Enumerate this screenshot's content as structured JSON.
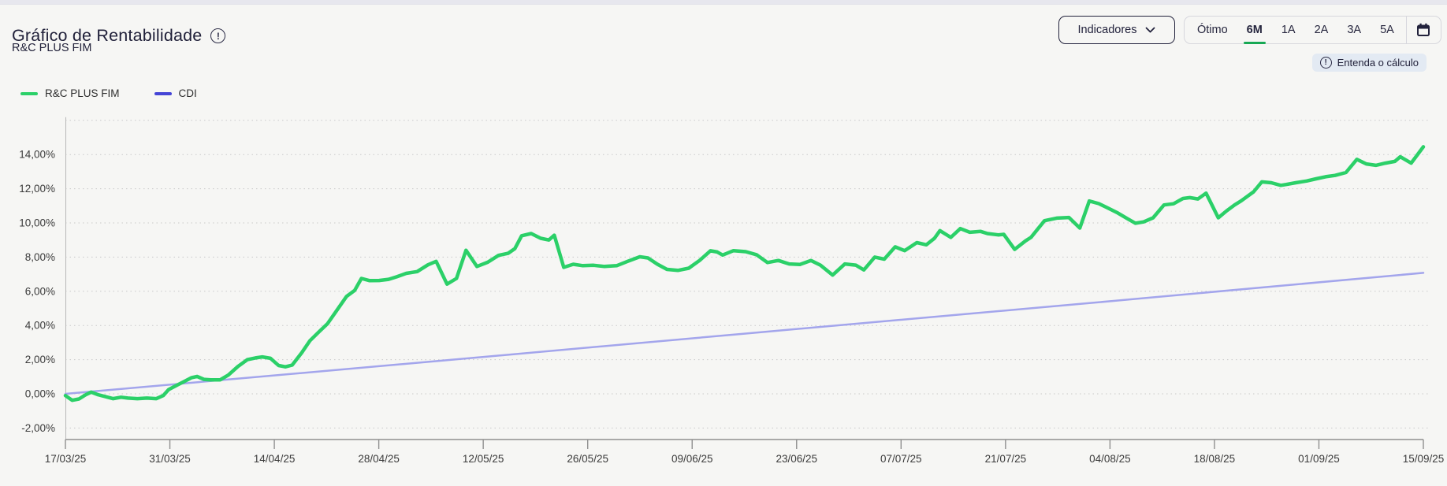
{
  "header": {
    "title": "Gráfico de Rentabilidade",
    "subtitle": "R&C PLUS FIM",
    "indicators_button_label": "Indicadores",
    "chevron_icon": "chevron-down-icon",
    "title_info_icon": "info-icon",
    "info_glyph": "!",
    "periods": [
      "Ótimo",
      "6M",
      "1A",
      "2A",
      "3A",
      "5A"
    ],
    "selected_period": "6M",
    "calendar_icon": "calendar-icon",
    "explain_chip_label": "Entenda o cálculo"
  },
  "colors": {
    "fund_line": "#2bd068",
    "cdi_line": "#a3a5ec",
    "cdi_legend_swatch": "#4545d6",
    "selected_period_underline": "#17a854",
    "gridline": "#c9c9c9",
    "axis_left": "#b8b8b8",
    "axis_bottom": "#8f8f8f",
    "axis_text": "#3b3b3b",
    "navy_text": "#22223c",
    "chip_background": "#e3eaf3",
    "page_background": "#f6f6f4"
  },
  "legend": [
    {
      "label": "R&C PLUS FIM",
      "swatch_color": "#2bd068"
    },
    {
      "label": "CDI",
      "swatch_color": "#4545d6"
    }
  ],
  "chart_data": {
    "type": "line",
    "title": "Gráfico de Rentabilidade",
    "xlabel": "",
    "ylabel": "",
    "grid": "horizontal-dotted",
    "legend_position": "top-left-above-plot",
    "ylim": [
      -2.67,
      16
    ],
    "y_ticks": [
      -2,
      0,
      2,
      4,
      6,
      8,
      10,
      12,
      14
    ],
    "y_tick_labels": [
      "-2,00%",
      "0,00%",
      "2,00%",
      "4,00%",
      "6,00%",
      "8,00%",
      "10,00%",
      "12,00%",
      "14,00%"
    ],
    "extra_top_gridline": 16,
    "x_tick_labels": [
      "17/03/25",
      "31/03/25",
      "14/04/25",
      "28/04/25",
      "12/05/25",
      "26/05/25",
      "09/06/25",
      "23/06/25",
      "07/07/25",
      "21/07/25",
      "04/08/25",
      "18/08/25",
      "01/09/25",
      "15/09/25"
    ],
    "series": [
      {
        "name": "R&C PLUS FIM",
        "color": "#2bd068",
        "width": 4.5,
        "points": [
          [
            0,
            -0.1
          ],
          [
            0.005,
            -0.38
          ],
          [
            0.01,
            -0.3
          ],
          [
            0.015,
            -0.05
          ],
          [
            0.019,
            0.1
          ],
          [
            0.024,
            -0.05
          ],
          [
            0.029,
            -0.15
          ],
          [
            0.035,
            -0.28
          ],
          [
            0.041,
            -0.2
          ],
          [
            0.046,
            -0.25
          ],
          [
            0.053,
            -0.28
          ],
          [
            0.06,
            -0.25
          ],
          [
            0.067,
            -0.28
          ],
          [
            0.072,
            -0.1
          ],
          [
            0.076,
            0.25
          ],
          [
            0.082,
            0.5
          ],
          [
            0.087,
            0.7
          ],
          [
            0.093,
            0.95
          ],
          [
            0.097,
            1.02
          ],
          [
            0.102,
            0.85
          ],
          [
            0.107,
            0.82
          ],
          [
            0.114,
            0.82
          ],
          [
            0.12,
            1.1
          ],
          [
            0.127,
            1.6
          ],
          [
            0.134,
            2.0
          ],
          [
            0.14,
            2.1
          ],
          [
            0.145,
            2.16
          ],
          [
            0.151,
            2.08
          ],
          [
            0.157,
            1.66
          ],
          [
            0.162,
            1.58
          ],
          [
            0.167,
            1.68
          ],
          [
            0.174,
            2.4
          ],
          [
            0.18,
            3.1
          ],
          [
            0.187,
            3.65
          ],
          [
            0.193,
            4.1
          ],
          [
            0.2,
            4.9
          ],
          [
            0.207,
            5.7
          ],
          [
            0.213,
            6.05
          ],
          [
            0.218,
            6.75
          ],
          [
            0.224,
            6.62
          ],
          [
            0.231,
            6.63
          ],
          [
            0.238,
            6.7
          ],
          [
            0.244,
            6.85
          ],
          [
            0.251,
            7.05
          ],
          [
            0.259,
            7.15
          ],
          [
            0.267,
            7.55
          ],
          [
            0.273,
            7.75
          ],
          [
            0.281,
            6.42
          ],
          [
            0.288,
            6.75
          ],
          [
            0.295,
            8.4
          ],
          [
            0.303,
            7.45
          ],
          [
            0.311,
            7.7
          ],
          [
            0.319,
            8.1
          ],
          [
            0.326,
            8.22
          ],
          [
            0.331,
            8.5
          ],
          [
            0.336,
            9.25
          ],
          [
            0.343,
            9.38
          ],
          [
            0.35,
            9.1
          ],
          [
            0.356,
            9.0
          ],
          [
            0.36,
            9.28
          ],
          [
            0.367,
            7.4
          ],
          [
            0.374,
            7.58
          ],
          [
            0.381,
            7.5
          ],
          [
            0.389,
            7.52
          ],
          [
            0.397,
            7.45
          ],
          [
            0.406,
            7.5
          ],
          [
            0.414,
            7.75
          ],
          [
            0.423,
            8.02
          ],
          [
            0.429,
            7.95
          ],
          [
            0.436,
            7.58
          ],
          [
            0.443,
            7.28
          ],
          [
            0.451,
            7.22
          ],
          [
            0.459,
            7.35
          ],
          [
            0.467,
            7.8
          ],
          [
            0.475,
            8.37
          ],
          [
            0.48,
            8.3
          ],
          [
            0.484,
            8.12
          ],
          [
            0.492,
            8.38
          ],
          [
            0.501,
            8.32
          ],
          [
            0.509,
            8.14
          ],
          [
            0.517,
            7.68
          ],
          [
            0.525,
            7.8
          ],
          [
            0.533,
            7.6
          ],
          [
            0.541,
            7.57
          ],
          [
            0.549,
            7.8
          ],
          [
            0.556,
            7.53
          ],
          [
            0.565,
            6.95
          ],
          [
            0.574,
            7.6
          ],
          [
            0.582,
            7.53
          ],
          [
            0.588,
            7.25
          ],
          [
            0.596,
            8.0
          ],
          [
            0.603,
            7.88
          ],
          [
            0.611,
            8.6
          ],
          [
            0.618,
            8.38
          ],
          [
            0.627,
            8.85
          ],
          [
            0.634,
            8.72
          ],
          [
            0.64,
            9.1
          ],
          [
            0.644,
            9.55
          ],
          [
            0.652,
            9.15
          ],
          [
            0.659,
            9.67
          ],
          [
            0.666,
            9.45
          ],
          [
            0.674,
            9.5
          ],
          [
            0.679,
            9.38
          ],
          [
            0.687,
            9.3
          ],
          [
            0.691,
            9.33
          ],
          [
            0.699,
            8.45
          ],
          [
            0.707,
            8.95
          ],
          [
            0.711,
            9.15
          ],
          [
            0.721,
            10.13
          ],
          [
            0.73,
            10.28
          ],
          [
            0.739,
            10.32
          ],
          [
            0.747,
            9.7
          ],
          [
            0.754,
            11.28
          ],
          [
            0.761,
            11.13
          ],
          [
            0.767,
            10.9
          ],
          [
            0.775,
            10.58
          ],
          [
            0.782,
            10.25
          ],
          [
            0.788,
            9.98
          ],
          [
            0.794,
            10.06
          ],
          [
            0.801,
            10.3
          ],
          [
            0.809,
            11.05
          ],
          [
            0.816,
            11.12
          ],
          [
            0.823,
            11.43
          ],
          [
            0.828,
            11.48
          ],
          [
            0.834,
            11.4
          ],
          [
            0.84,
            11.74
          ],
          [
            0.849,
            10.3
          ],
          [
            0.855,
            10.7
          ],
          [
            0.861,
            11.05
          ],
          [
            0.866,
            11.3
          ],
          [
            0.875,
            11.82
          ],
          [
            0.881,
            12.4
          ],
          [
            0.888,
            12.35
          ],
          [
            0.895,
            12.2
          ],
          [
            0.899,
            12.25
          ],
          [
            0.906,
            12.35
          ],
          [
            0.914,
            12.45
          ],
          [
            0.921,
            12.58
          ],
          [
            0.928,
            12.7
          ],
          [
            0.935,
            12.78
          ],
          [
            0.943,
            12.95
          ],
          [
            0.951,
            13.72
          ],
          [
            0.958,
            13.45
          ],
          [
            0.965,
            13.37
          ],
          [
            0.972,
            13.5
          ],
          [
            0.979,
            13.6
          ],
          [
            0.983,
            13.87
          ],
          [
            0.991,
            13.5
          ],
          [
            1,
            14.45
          ]
        ]
      },
      {
        "name": "CDI",
        "color": "#a3a5ec",
        "width": 2.5,
        "points": [
          [
            0,
            0
          ],
          [
            0.25,
            1.75
          ],
          [
            0.5,
            3.52
          ],
          [
            0.75,
            5.28
          ],
          [
            1,
            7.08
          ]
        ]
      }
    ]
  }
}
